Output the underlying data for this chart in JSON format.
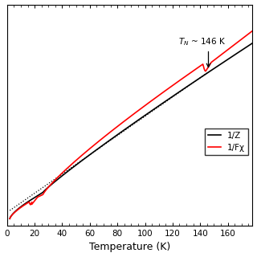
{
  "title": "",
  "xlabel": "Temperature (K)",
  "ylabel": "",
  "xlim": [
    0,
    178
  ],
  "x_ticks": [
    0,
    20,
    40,
    60,
    80,
    100,
    120,
    140,
    160
  ],
  "TN": 146,
  "TN_label": "$T_N$ ~ 146 K",
  "legend_labels": [
    "1/Z",
    "1/Fχ"
  ],
  "line1_color": "black",
  "line2_color": "red",
  "dotted_color": "black",
  "background_color": "white"
}
